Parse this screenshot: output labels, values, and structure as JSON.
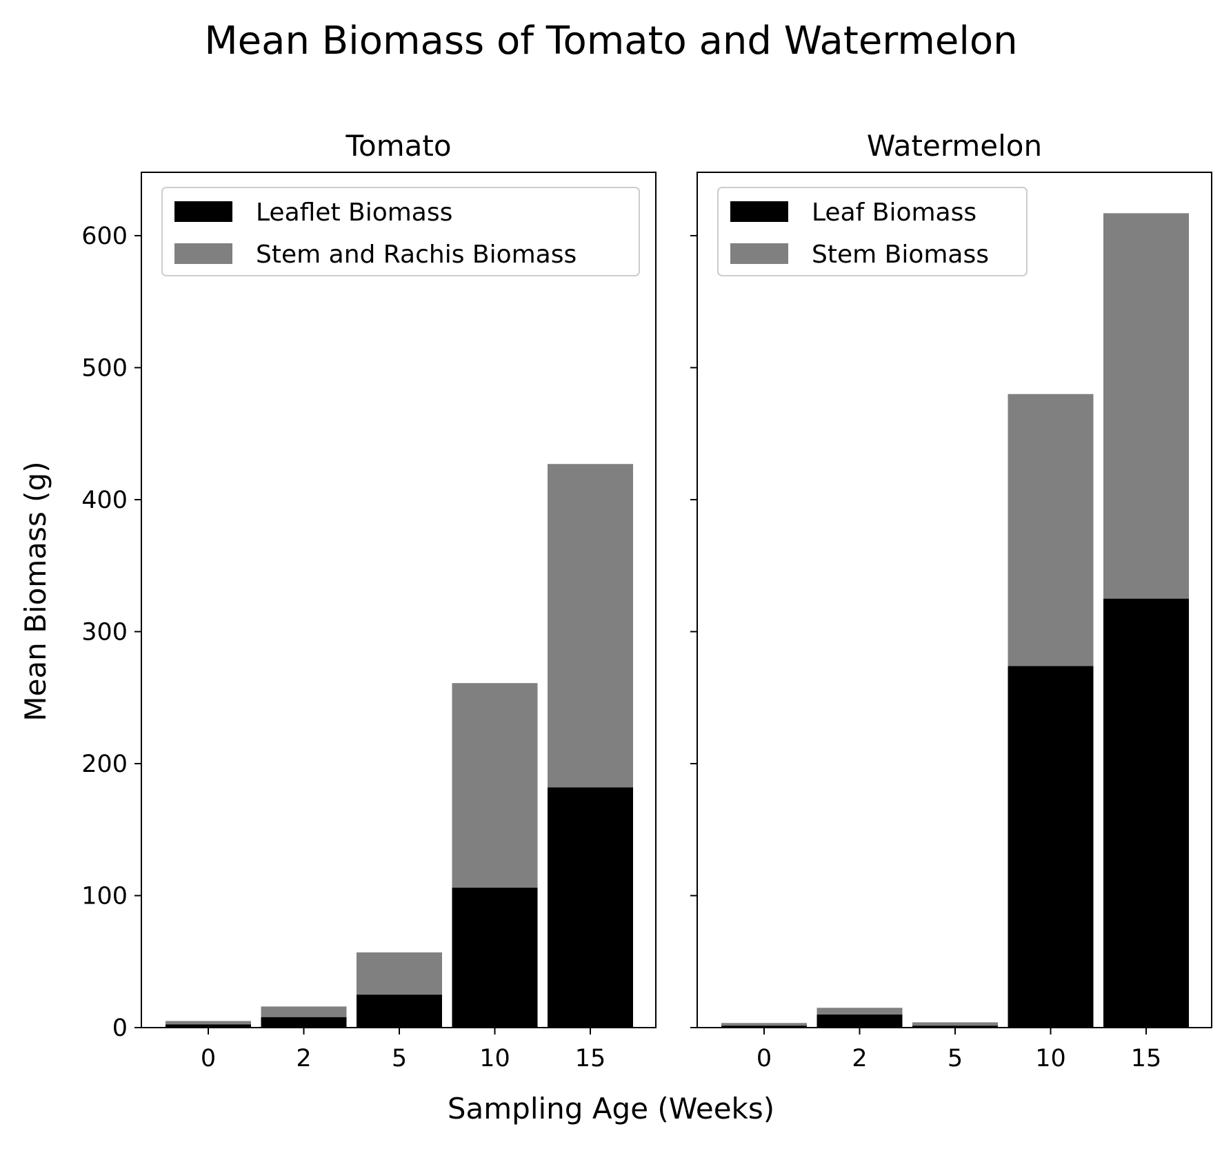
{
  "title": "Mean Biomass of Tomato and Watermelon",
  "xlabel": "Sampling Age (Weeks)",
  "ylabel": "Mean Biomass (g)",
  "colors": {
    "lower_series": "#000000",
    "upper_series": "#808080"
  },
  "chart_data": [
    {
      "type": "bar",
      "stacked": true,
      "title": "Tomato",
      "categories": [
        "0",
        "2",
        "5",
        "10",
        "15"
      ],
      "series": [
        {
          "name": "Leaflet Biomass",
          "values": [
            2.5,
            8,
            25,
            106,
            182
          ],
          "color": "#000000"
        },
        {
          "name": "Stem and Rachis Biomass",
          "values": [
            2.5,
            8,
            32,
            155,
            245
          ],
          "color": "#808080"
        }
      ],
      "yticks": [
        0,
        100,
        200,
        300,
        400,
        500,
        600
      ],
      "ylim": [
        0,
        648
      ],
      "legend_position": "top-left",
      "grid": false
    },
    {
      "type": "bar",
      "stacked": true,
      "title": "Watermelon",
      "categories": [
        "0",
        "2",
        "5",
        "10",
        "15"
      ],
      "series": [
        {
          "name": "Leaf Biomass",
          "values": [
            1.5,
            10,
            1.5,
            274,
            325
          ],
          "color": "#000000"
        },
        {
          "name": "Stem Biomass",
          "values": [
            2,
            5,
            2.5,
            206,
            292
          ],
          "color": "#808080"
        }
      ],
      "yticks": [
        0,
        100,
        200,
        300,
        400,
        500,
        600
      ],
      "ylim": [
        0,
        648
      ],
      "legend_position": "top-left",
      "grid": false
    }
  ]
}
